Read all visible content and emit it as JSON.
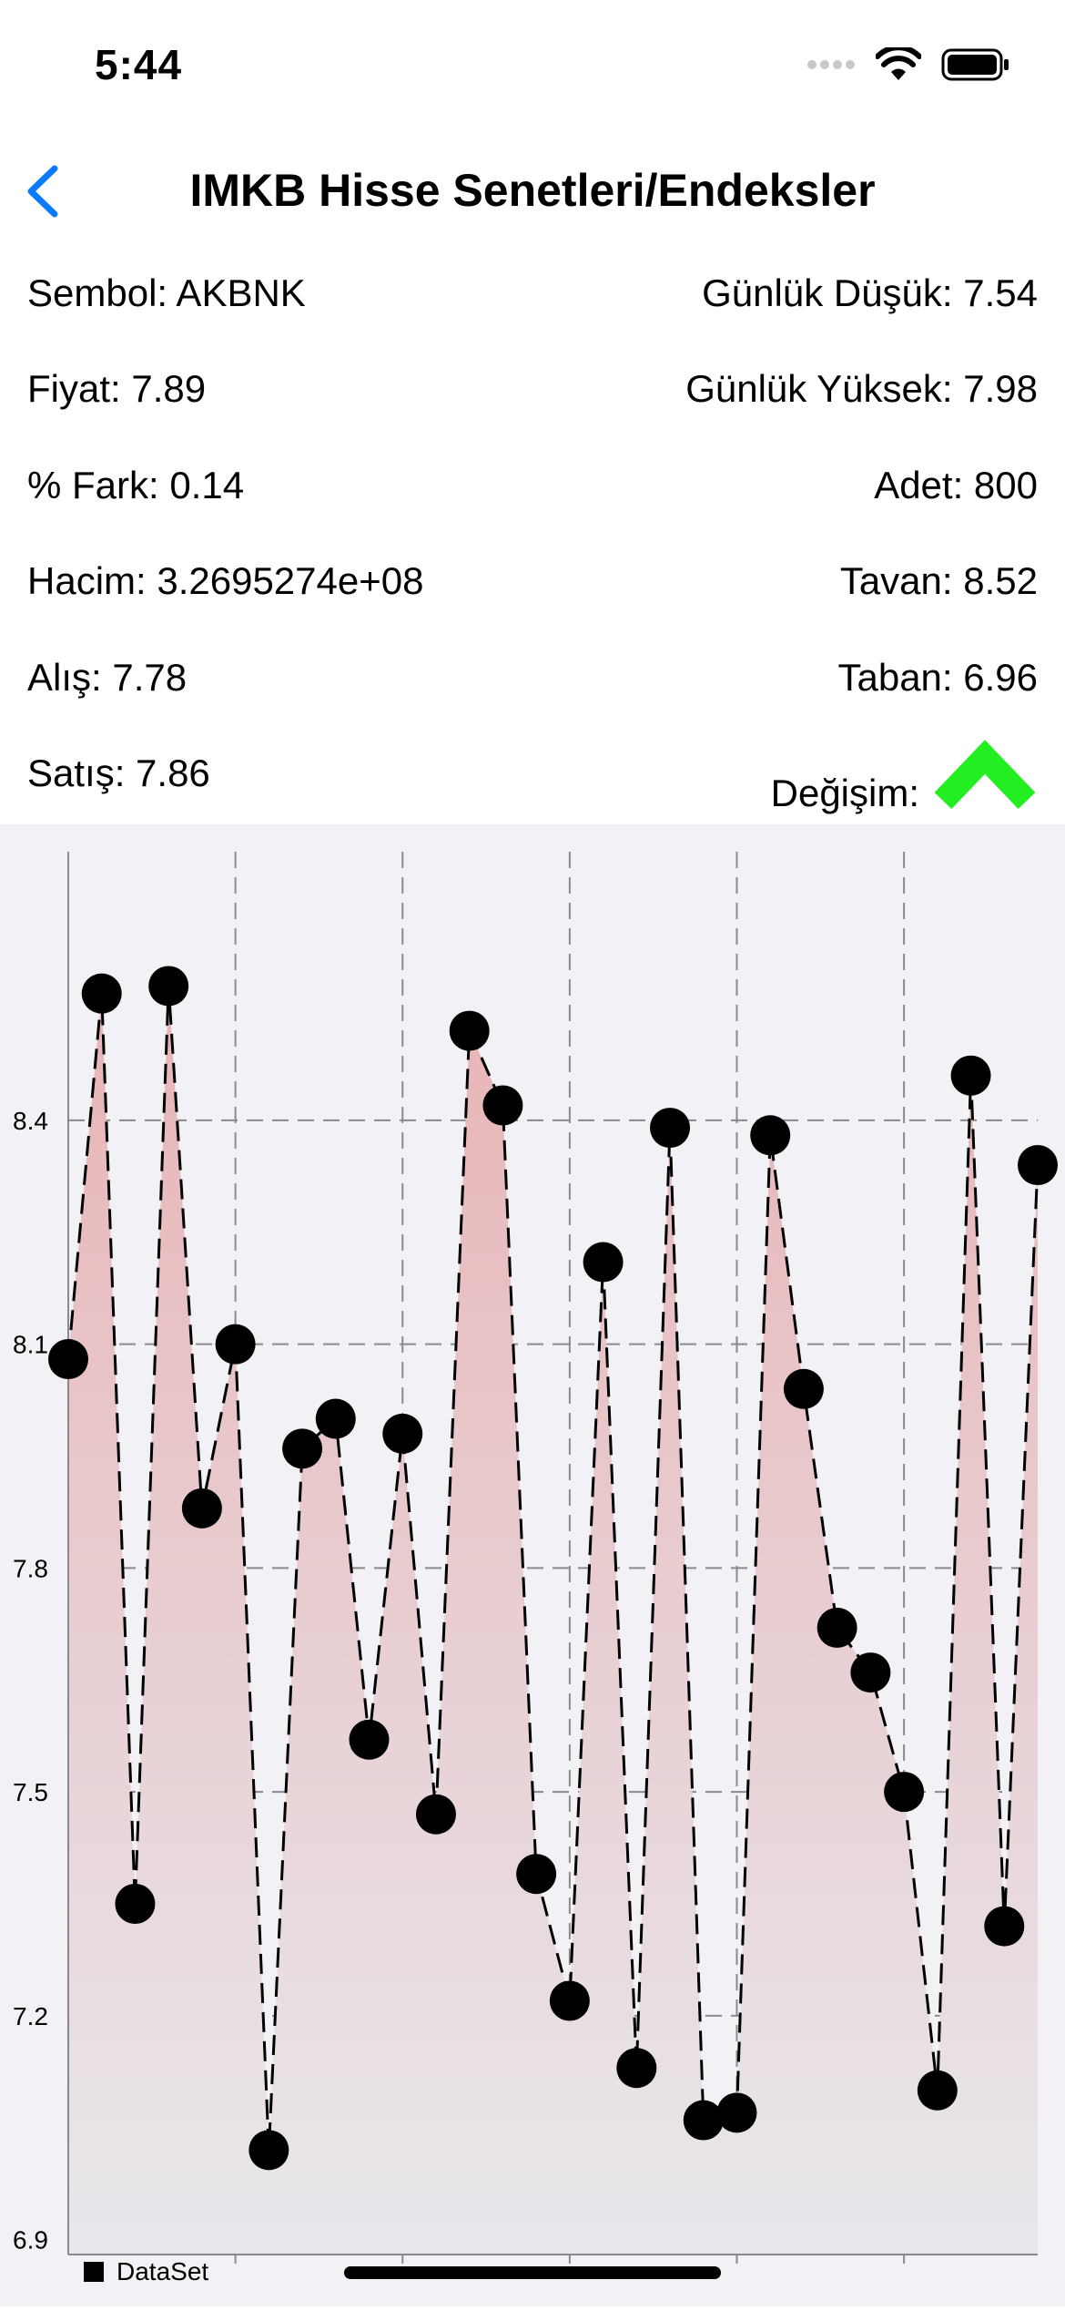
{
  "status_bar": {
    "time": "5:44"
  },
  "nav": {
    "title": "IMKB Hisse Senetleri/Endeksler"
  },
  "info": {
    "left": [
      "Sembol: AKBNK",
      "Fiyat: 7.89",
      "% Fark: 0.14",
      "Hacim: 3.2695274e+08",
      "Alış: 7.78",
      "Satış: 7.86"
    ],
    "right": [
      "Günlük Düşük: 7.54",
      "Günlük Yüksek: 7.98",
      "Adet: 800",
      "Tavan: 8.52",
      "Taban: 6.96"
    ],
    "change_label": "Değişim:",
    "change_direction": "up",
    "change_color": "#22ee22"
  },
  "chart_data": {
    "type": "line",
    "fill": "gradient",
    "line_style": "dashed",
    "grid": true,
    "ylim": [
      6.88,
      8.76
    ],
    "yticks": [
      6.9,
      7.2,
      7.5,
      7.8,
      8.1,
      8.4
    ],
    "ytick_labels": [
      "6.9",
      "7.2",
      "7.5",
      "7.8",
      "8.1",
      "8.4"
    ],
    "x": [
      0,
      1,
      2,
      3,
      4,
      5,
      6,
      7,
      8,
      9,
      10,
      11,
      12,
      13,
      14,
      15,
      16,
      17,
      18,
      19,
      20,
      21,
      22,
      23,
      24,
      25,
      26,
      27,
      28,
      29
    ],
    "series": [
      {
        "name": "DataSet",
        "values": [
          8.08,
          8.57,
          7.35,
          8.58,
          7.88,
          8.1,
          7.02,
          7.96,
          8.0,
          7.57,
          7.98,
          7.47,
          8.52,
          8.42,
          7.39,
          7.22,
          8.21,
          7.13,
          8.39,
          7.06,
          7.07,
          8.38,
          8.04,
          7.72,
          7.66,
          7.5,
          7.1,
          8.46,
          7.32,
          8.34
        ],
        "color": "#000000",
        "fill_top_color": "#e8b4b6",
        "fill_bottom_color": "#e8e8ec"
      }
    ],
    "legend_position": "bottom-left"
  }
}
